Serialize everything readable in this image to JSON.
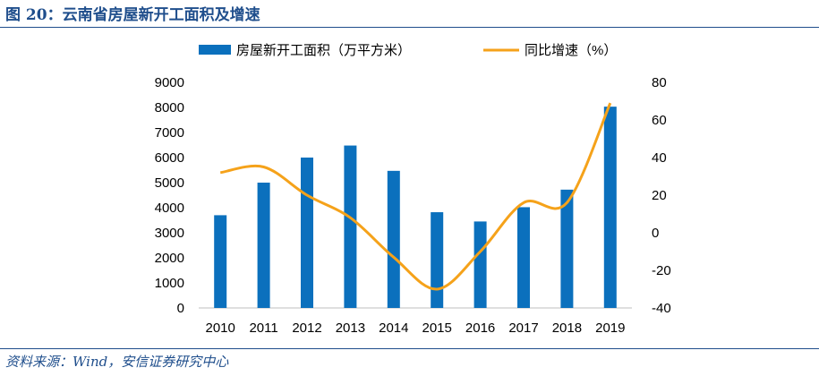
{
  "header": {
    "title": "图 20：云南省房屋新开工面积及增速"
  },
  "footer": {
    "source": "资料来源：Wind，安信证券研究中心"
  },
  "colors": {
    "bar": "#0b70bd",
    "line": "#f5a21a",
    "title": "#1f4e8c"
  },
  "chart_data": {
    "type": "bar",
    "categories": [
      "2010",
      "2011",
      "2012",
      "2013",
      "2014",
      "2015",
      "2016",
      "2017",
      "2018",
      "2019"
    ],
    "series": [
      {
        "name": "房屋新开工面积（万平方米）",
        "type": "bar",
        "axis": "left",
        "values": [
          3700,
          5000,
          6000,
          6480,
          5470,
          3820,
          3450,
          4020,
          4720,
          8030
        ]
      },
      {
        "name": "同比增速（%）",
        "type": "line",
        "axis": "right",
        "values": [
          32,
          35,
          20,
          8,
          -13,
          -30,
          -10,
          16,
          16,
          69
        ]
      }
    ],
    "ylim_left": [
      0,
      9000
    ],
    "yticks_left": [
      0,
      1000,
      2000,
      3000,
      4000,
      5000,
      6000,
      7000,
      8000,
      9000
    ],
    "ylim_right": [
      -40,
      80
    ],
    "yticks_right": [
      -40,
      -20,
      0,
      20,
      40,
      60,
      80
    ],
    "legend": "top-center",
    "grid": false
  }
}
